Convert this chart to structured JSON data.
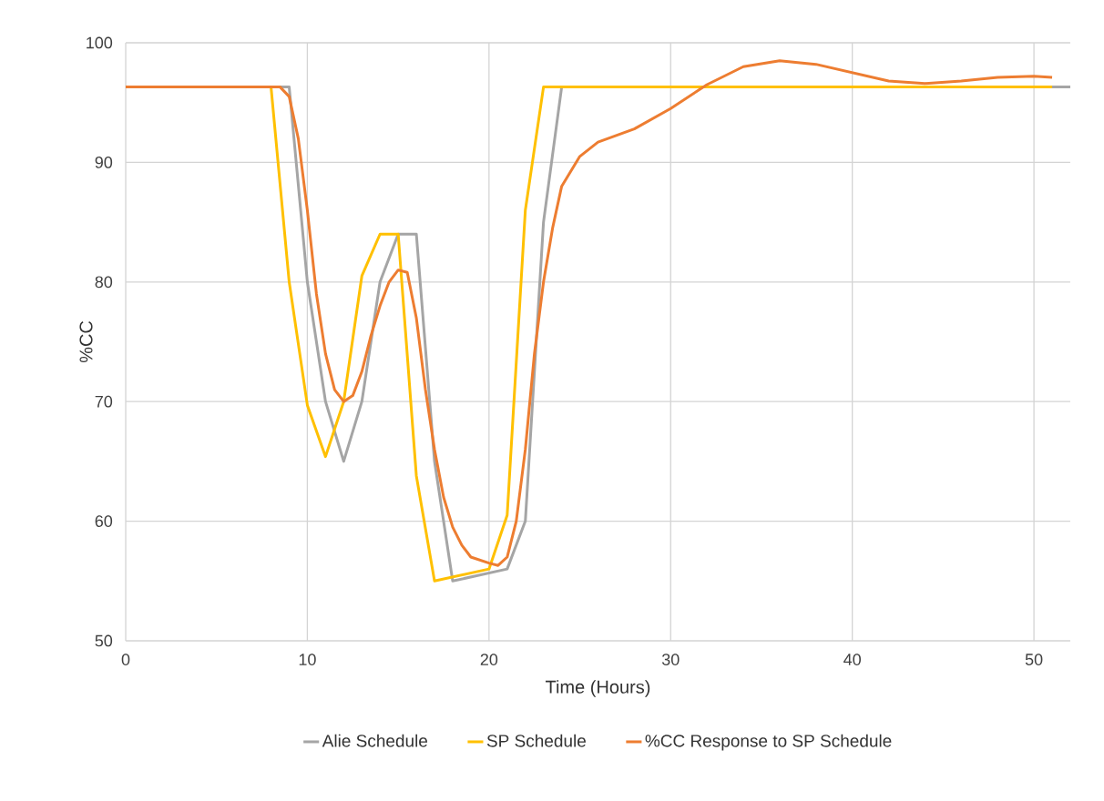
{
  "chart_data": {
    "type": "line",
    "xlabel": "Time (Hours)",
    "ylabel": "%CC",
    "xlim": [
      0,
      52
    ],
    "xticks": [
      0,
      10,
      20,
      30,
      40,
      50
    ],
    "ylim": [
      50,
      100
    ],
    "yticks": [
      50,
      60,
      70,
      80,
      90,
      100
    ],
    "grid": true,
    "legend": "bottom",
    "marker": "none",
    "line_style": "solid",
    "series": [
      {
        "name": "Alie Schedule",
        "color": "#a5a5a5",
        "x": [
          0,
          9,
          10,
          11,
          12,
          13,
          14,
          15,
          16,
          17,
          18,
          21,
          22,
          23,
          24,
          52
        ],
        "values": [
          96.3,
          96.3,
          80,
          70,
          65,
          70,
          80,
          84,
          84,
          65,
          55,
          56,
          60,
          85,
          96.3,
          96.3
        ]
      },
      {
        "name": "SP Schedule",
        "color": "#ffc000",
        "x": [
          0,
          8,
          9,
          10,
          11,
          12,
          13,
          14,
          15,
          16,
          17,
          20,
          21,
          22,
          23,
          51
        ],
        "values": [
          96.3,
          96.3,
          80,
          69.7,
          65.4,
          70,
          80.5,
          84,
          84,
          63.8,
          55,
          56,
          60.5,
          86,
          96.3,
          96.3
        ]
      },
      {
        "name": "%CC Response to SP Schedule",
        "color": "#ed7d31",
        "x": [
          0,
          8,
          8.5,
          9,
          9.5,
          10,
          10.5,
          11,
          11.5,
          12,
          12.5,
          13,
          13.5,
          14,
          14.5,
          15,
          15.5,
          16,
          16.5,
          17,
          17.5,
          18,
          18.5,
          19,
          20,
          20.5,
          21,
          21.5,
          22,
          22.5,
          23,
          23.5,
          24,
          25,
          26,
          28,
          30,
          32,
          34,
          36,
          38,
          40,
          42,
          44,
          46,
          48,
          50,
          51
        ],
        "values": [
          96.3,
          96.3,
          96.3,
          95.5,
          92,
          86,
          79,
          74,
          71,
          70,
          70.5,
          72.5,
          75.5,
          78,
          80,
          81,
          80.8,
          77,
          71,
          66,
          62,
          59.5,
          58,
          57,
          56.5,
          56.3,
          57,
          60,
          66,
          74,
          80,
          84.5,
          88,
          90.5,
          91.7,
          92.8,
          94.5,
          96.5,
          98,
          98.5,
          98.2,
          97.5,
          96.8,
          96.6,
          96.8,
          97.1,
          97.2,
          97.1
        ]
      }
    ]
  }
}
